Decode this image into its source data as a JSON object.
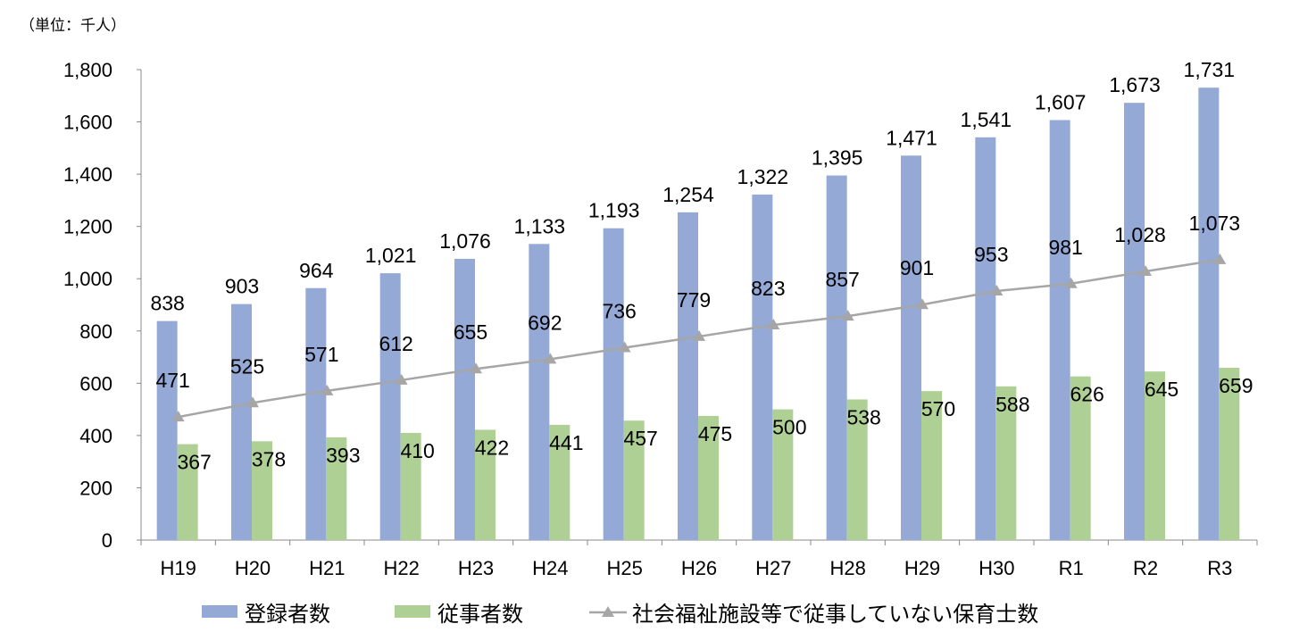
{
  "chart_data": {
    "type": "bar",
    "unit_label": "（単位：千人）",
    "categories": [
      "H19",
      "H20",
      "H21",
      "H22",
      "H23",
      "H24",
      "H25",
      "H26",
      "H27",
      "H28",
      "H29",
      "H30",
      "R1",
      "R2",
      "R3"
    ],
    "ylim": [
      0,
      1800
    ],
    "yticks": [
      "0",
      "200",
      "400",
      "600",
      "800",
      "1,000",
      "1,200",
      "1,400",
      "1,600",
      "1,800"
    ],
    "grid": false,
    "legend_placement": "bottom",
    "series": [
      {
        "name": "登録者数",
        "type": "bar",
        "color": "#95A9D7",
        "values": [
          838,
          903,
          964,
          1021,
          1076,
          1133,
          1193,
          1254,
          1322,
          1395,
          1471,
          1541,
          1607,
          1673,
          1731
        ]
      },
      {
        "name": "従事者数",
        "type": "bar",
        "color": "#AED094",
        "values": [
          367,
          378,
          393,
          410,
          422,
          441,
          457,
          475,
          500,
          538,
          570,
          588,
          626,
          645,
          659
        ]
      },
      {
        "name": "社会福祉施設等で従事していない保育士数",
        "type": "line",
        "color": "#A6A6A6",
        "values": [
          471,
          525,
          571,
          612,
          655,
          692,
          736,
          779,
          823,
          857,
          901,
          953,
          981,
          1028,
          1073
        ]
      }
    ]
  }
}
